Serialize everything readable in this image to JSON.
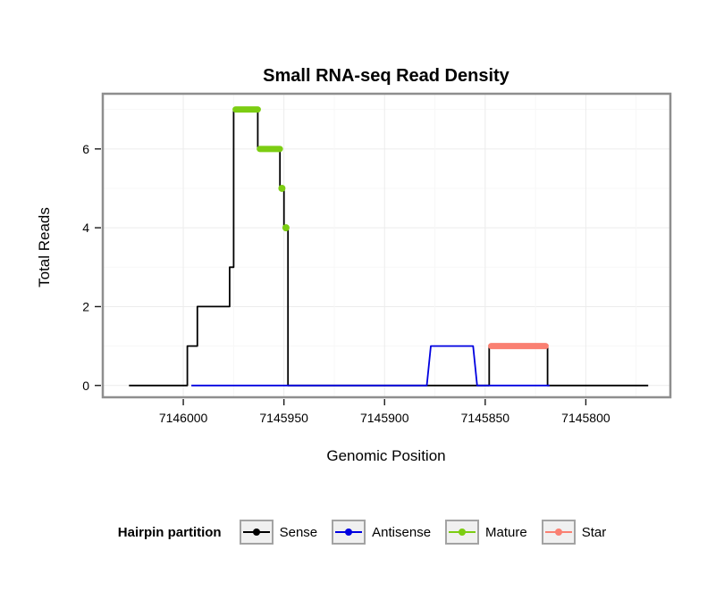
{
  "title": "Small RNA-seq Read Density",
  "chart_data": {
    "type": "line",
    "title": "Small RNA-seq Read Density",
    "xlabel": "Genomic Position",
    "ylabel": "Total Reads",
    "x_reversed": true,
    "xlim": [
      7146040,
      7145758
    ],
    "ylim": [
      -0.3,
      7.4
    ],
    "x_ticks": [
      7146000,
      7145950,
      7145900,
      7145850,
      7145800
    ],
    "y_ticks": [
      0,
      2,
      4,
      6
    ],
    "grid": true,
    "legend_position": "bottom",
    "series": [
      {
        "name": "Sense",
        "color": "#000000",
        "points": [
          [
            7146027,
            0
          ],
          [
            7145998,
            0
          ],
          [
            7145998,
            1
          ],
          [
            7145993,
            1
          ],
          [
            7145993,
            2
          ],
          [
            7145977,
            2
          ],
          [
            7145977,
            3
          ],
          [
            7145975,
            3
          ],
          [
            7145975,
            7
          ],
          [
            7145963,
            7
          ],
          [
            7145963,
            6
          ],
          [
            7145952,
            6
          ],
          [
            7145952,
            5
          ],
          [
            7145950,
            5
          ],
          [
            7145950,
            4
          ],
          [
            7145948,
            4
          ],
          [
            7145948,
            0
          ],
          [
            7145848,
            0
          ],
          [
            7145848,
            1
          ],
          [
            7145819,
            1
          ],
          [
            7145819,
            0
          ],
          [
            7145769,
            0
          ]
        ]
      },
      {
        "name": "Antisense",
        "color": "#0000e0",
        "points": [
          [
            7145996,
            0
          ],
          [
            7145879,
            0
          ],
          [
            7145877,
            1
          ],
          [
            7145856,
            1
          ],
          [
            7145854,
            0
          ],
          [
            7145818,
            0
          ]
        ]
      }
    ],
    "segments": [
      {
        "name": "Mature",
        "color": "#7ccd12",
        "y": 7,
        "from": 7145974,
        "to": 7145963
      },
      {
        "name": "Mature",
        "color": "#7ccd12",
        "y": 6,
        "from": 7145962,
        "to": 7145952
      },
      {
        "name": "Star",
        "color": "#fa8072",
        "y": 1,
        "from": 7145847,
        "to": 7145820
      }
    ],
    "points": [
      {
        "name": "Mature",
        "color": "#7ccd12",
        "x": 7145951,
        "y": 5
      },
      {
        "name": "Mature",
        "color": "#7ccd12",
        "x": 7145949,
        "y": 4
      }
    ]
  },
  "legend": {
    "title": "Hairpin partition",
    "items": [
      {
        "label": "Sense",
        "color": "#000000"
      },
      {
        "label": "Antisense",
        "color": "#0000e0"
      },
      {
        "label": "Mature",
        "color": "#7ccd12"
      },
      {
        "label": "Star",
        "color": "#fa8072"
      }
    ]
  }
}
